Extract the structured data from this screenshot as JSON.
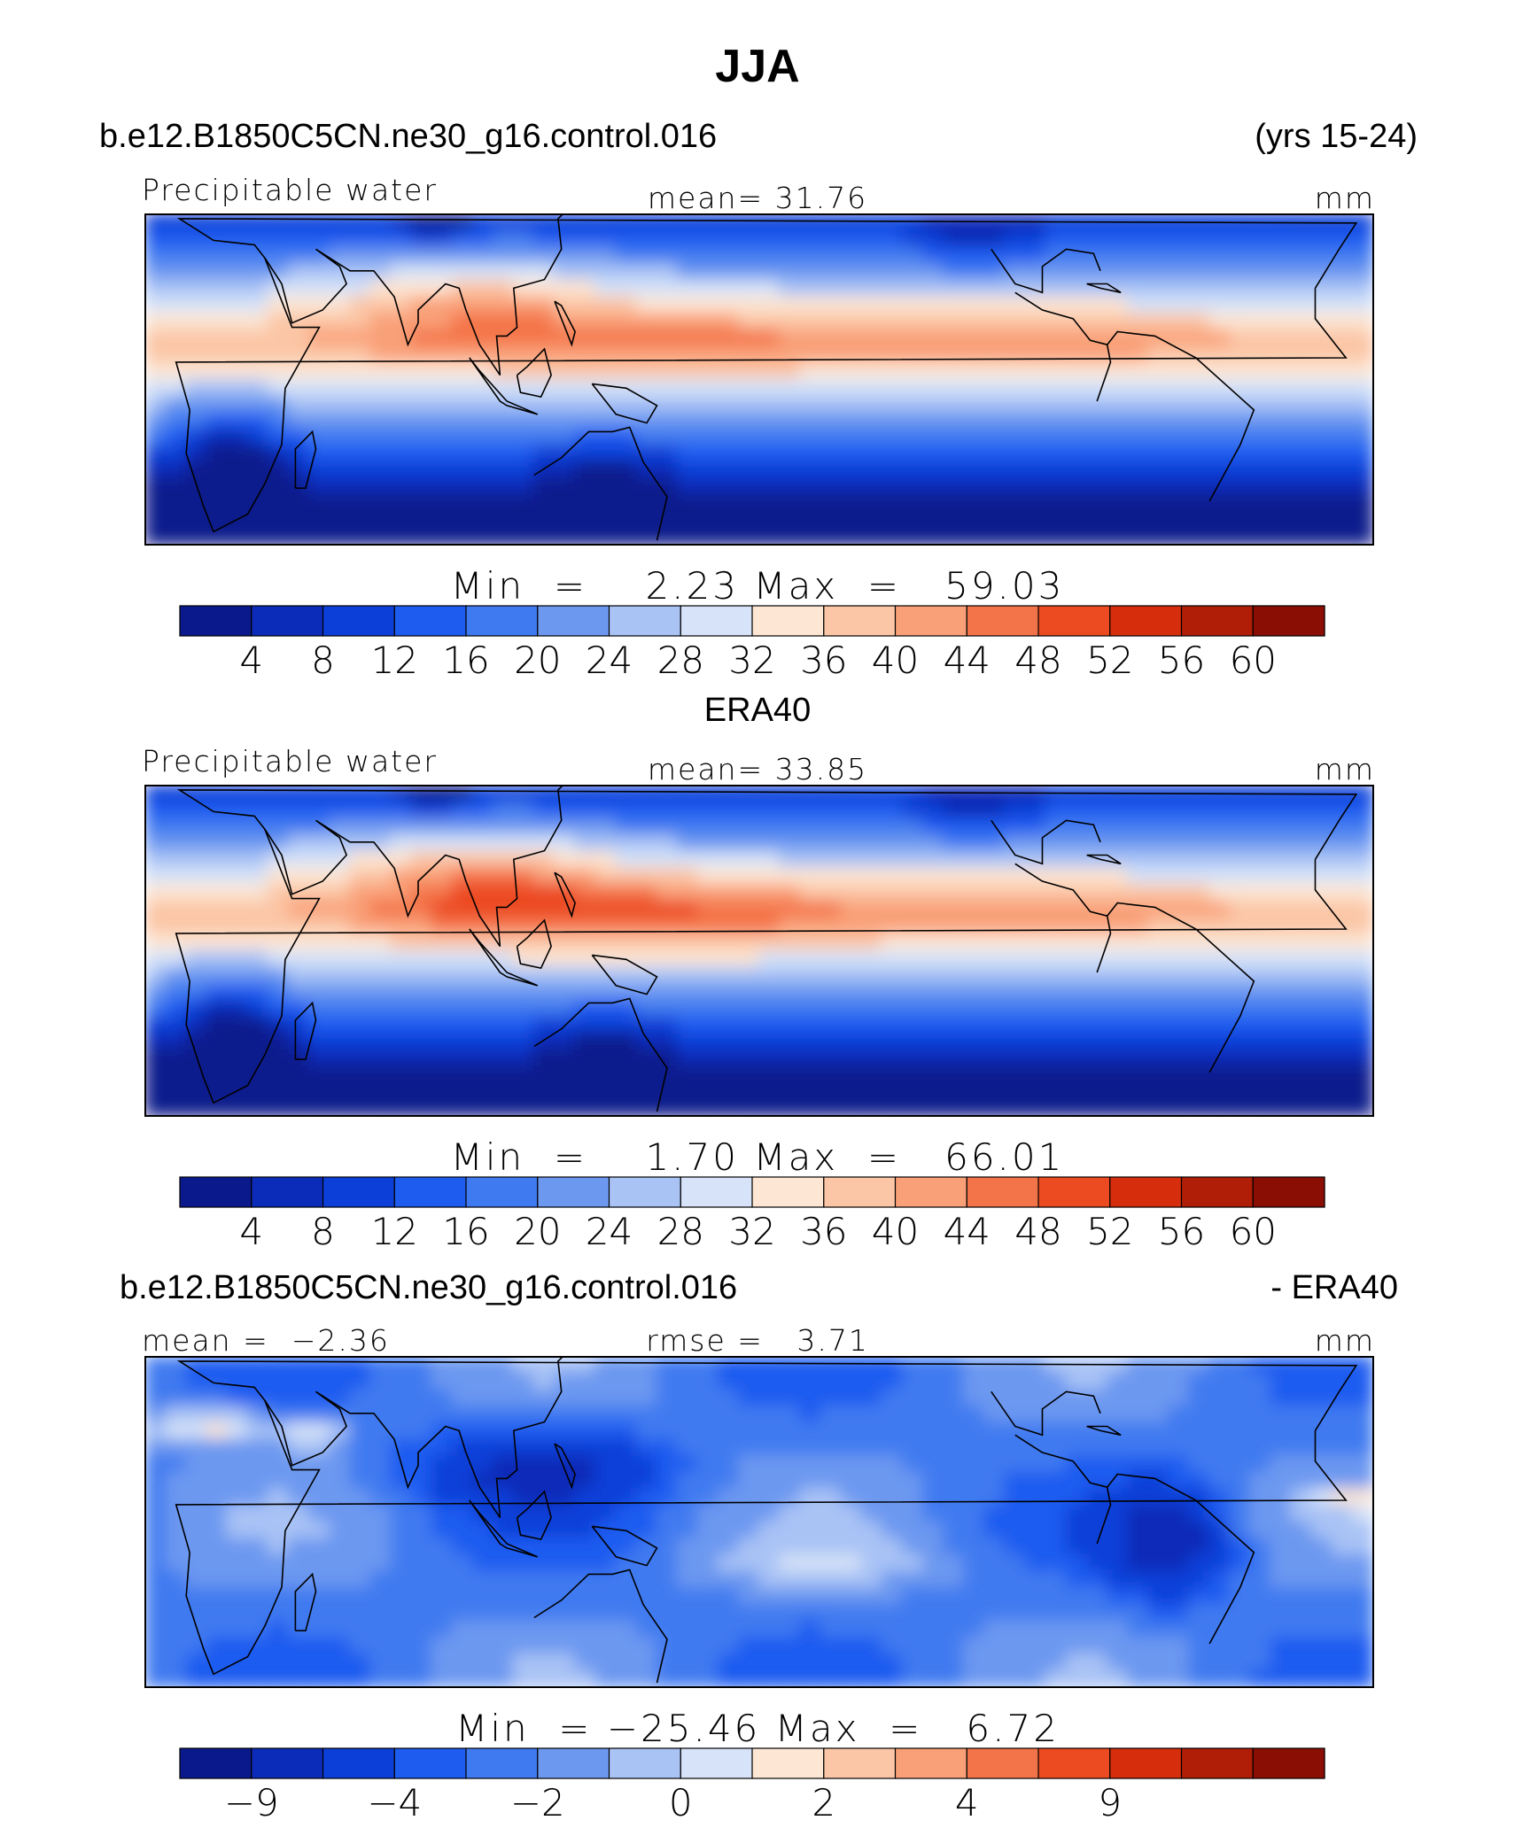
{
  "title": "JJA",
  "colors": {
    "scale": [
      "#0a1a8c",
      "#0b2cb8",
      "#0c3fd8",
      "#1e5cf0",
      "#3f7af0",
      "#6c98f0",
      "#a9c3f5",
      "#d6e3f8",
      "#fde6d3",
      "#fbc6a6",
      "#f9a078",
      "#f4744a",
      "#ec4a20",
      "#d62e0c",
      "#b01e08",
      "#8a0e04"
    ]
  },
  "panels": [
    {
      "header_left": "b.e12.B1850C5CN.ne30_g16.control.016",
      "header_right": "(yrs 15-24)",
      "label_left": "Precipitable water",
      "label_center": "mean=  31.76",
      "label_right": "mm",
      "minmax": "Min  =    2.23 Max  =   59.03",
      "field": "model",
      "colorbar_ticks": [
        "4",
        "8",
        "12",
        "16",
        "20",
        "24",
        "28",
        "32",
        "36",
        "40",
        "44",
        "48",
        "52",
        "56",
        "60"
      ]
    },
    {
      "header_center": "ERA40",
      "label_left": "Precipitable water",
      "label_center": "mean=  33.85",
      "label_right": "mm",
      "minmax": "Min  =    1.70 Max  =   66.01",
      "field": "obs",
      "colorbar_ticks": [
        "4",
        "8",
        "12",
        "16",
        "20",
        "24",
        "28",
        "32",
        "36",
        "40",
        "44",
        "48",
        "52",
        "56",
        "60"
      ]
    },
    {
      "header_left": "b.e12.B1850C5CN.ne30_g16.control.016",
      "header_right": "- ERA40",
      "label_left": "mean =  −2.36",
      "label_center": "rmse =   3.71",
      "label_right": "mm",
      "minmax": "Min  = −25.46 Max  =   6.72",
      "field": "diff",
      "colorbar_ticks": [
        "−9",
        "",
        "−4",
        "",
        "−2",
        "",
        "0",
        "",
        "2",
        "",
        "4",
        "",
        "9",
        ""
      ]
    }
  ],
  "chart_data": [
    {
      "type": "heatmap",
      "title": "JJA",
      "subtitle": "b.e12.B1850C5CN.ne30_g16.control.016 (yrs 15-24)",
      "variable": "Precipitable water",
      "units": "mm",
      "mean": 31.76,
      "min": 2.23,
      "max": 59.03,
      "colorbar_levels": [
        4,
        8,
        12,
        16,
        20,
        24,
        28,
        32,
        36,
        40,
        44,
        48,
        52,
        56,
        60
      ]
    },
    {
      "type": "heatmap",
      "subtitle": "ERA40",
      "variable": "Precipitable water",
      "units": "mm",
      "mean": 33.85,
      "min": 1.7,
      "max": 66.01,
      "colorbar_levels": [
        4,
        8,
        12,
        16,
        20,
        24,
        28,
        32,
        36,
        40,
        44,
        48,
        52,
        56,
        60
      ]
    },
    {
      "type": "heatmap",
      "subtitle": "b.e12.B1850C5CN.ne30_g16.control.016 - ERA40",
      "units": "mm",
      "mean": -2.36,
      "rmse": 3.71,
      "min": -25.46,
      "max": 6.72,
      "colorbar_tick_labels": [
        -9,
        -4,
        -2,
        0,
        2,
        4,
        9
      ]
    }
  ]
}
